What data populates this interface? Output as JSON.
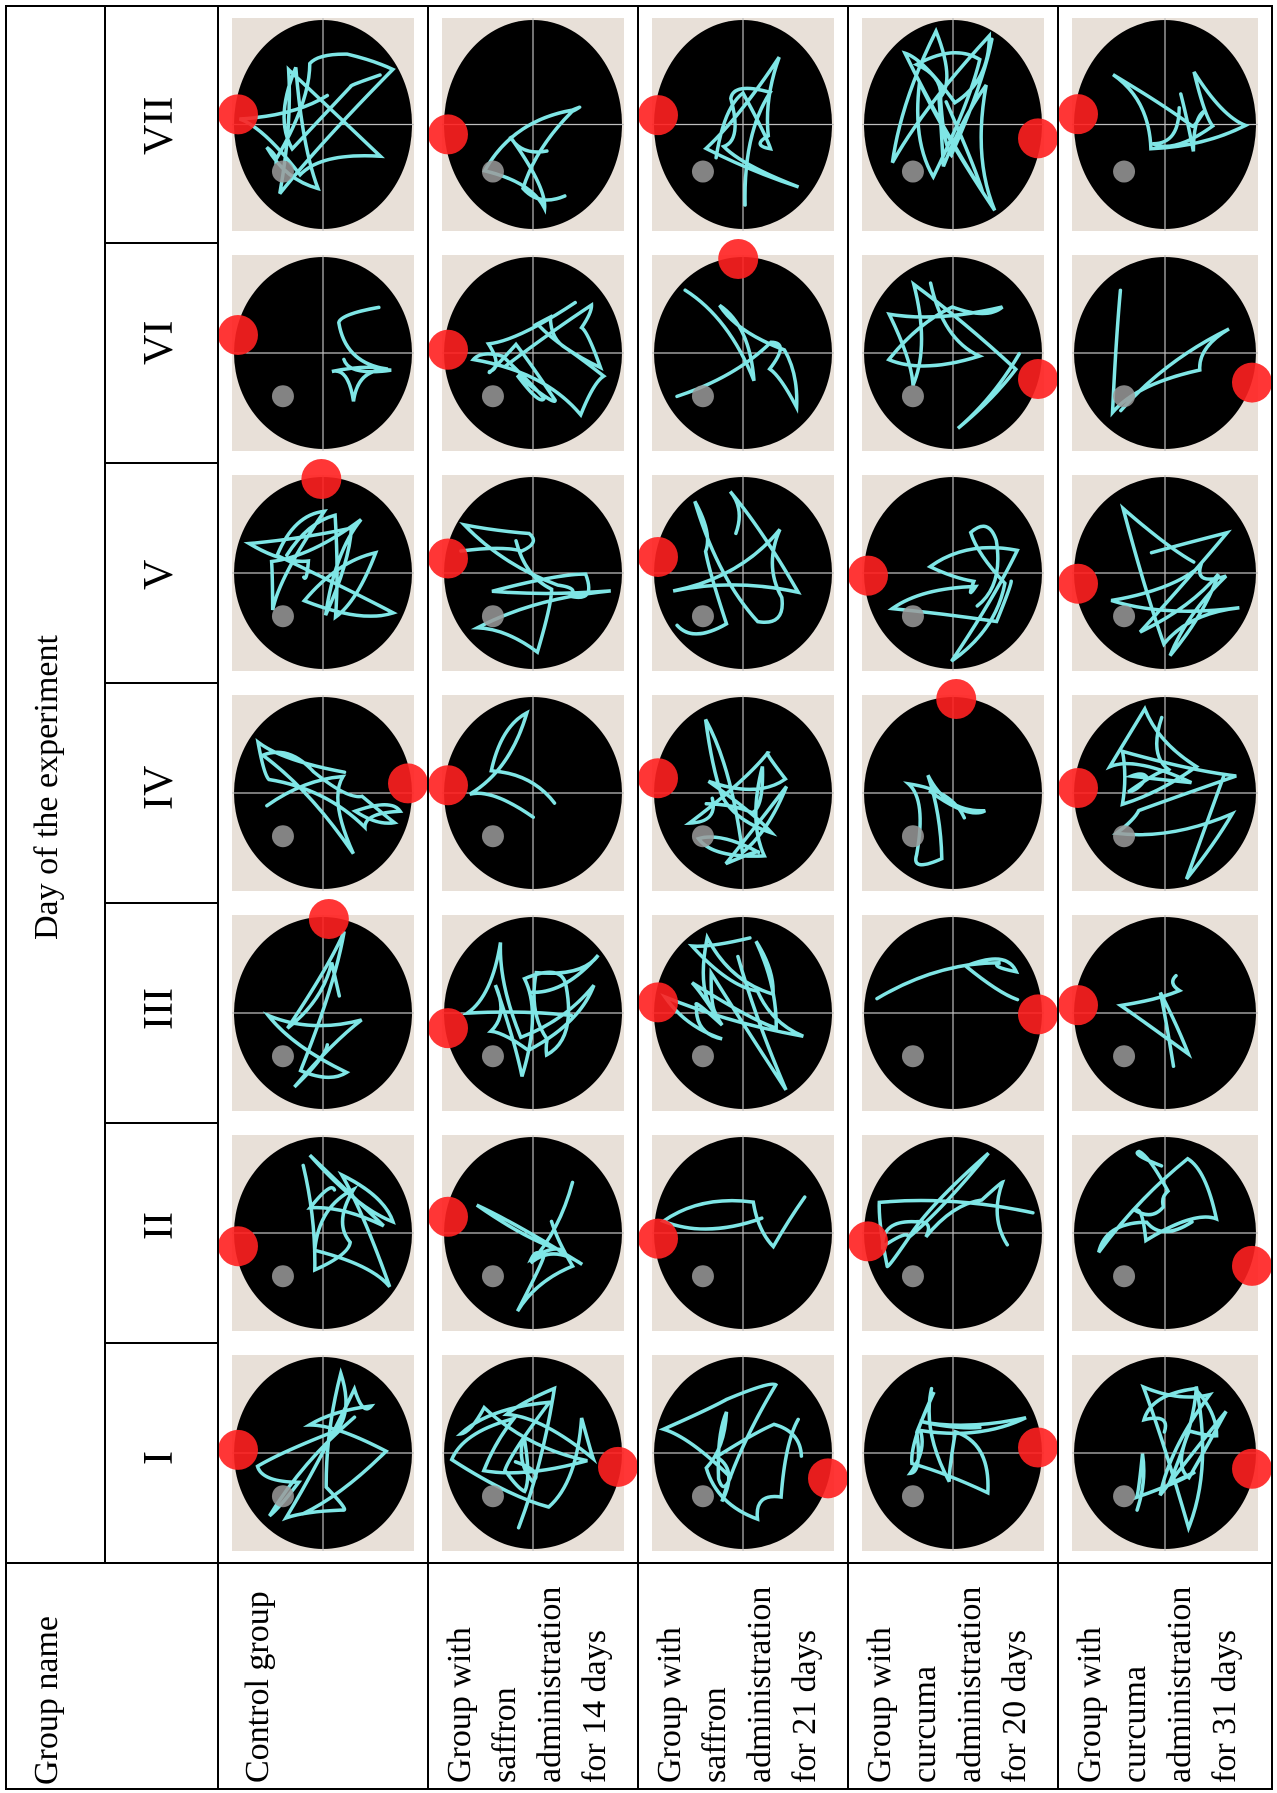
{
  "table": {
    "header_group_name": "Group name",
    "header_day": "Day of the experiment",
    "day_labels": [
      "I",
      "II",
      "III",
      "IV",
      "V",
      "VI",
      "VII"
    ],
    "groups": [
      {
        "id": "control",
        "lines": [
          "Control group"
        ]
      },
      {
        "id": "saffron-14",
        "lines": [
          "Group with",
          "saffron",
          "administration",
          "for 14 days"
        ]
      },
      {
        "id": "saffron-21",
        "lines": [
          "Group with",
          "saffron",
          "administration",
          "for 21 days"
        ]
      },
      {
        "id": "curcuma-20",
        "lines": [
          "Group with",
          "curcuma",
          "administration",
          "for 20 days"
        ]
      },
      {
        "id": "curcuma-31",
        "lines": [
          "Group with",
          "curcuma",
          "administration",
          "for 31 days"
        ]
      }
    ]
  },
  "colors": {
    "arena": "#000000",
    "panel_bg": "#e8e0d8",
    "track": "#7fe6e6",
    "platform": "#ff2020",
    "start_marker": "#9a9a9a",
    "crosshair": "#bfbfbf",
    "grid_line": "#000000"
  }
}
